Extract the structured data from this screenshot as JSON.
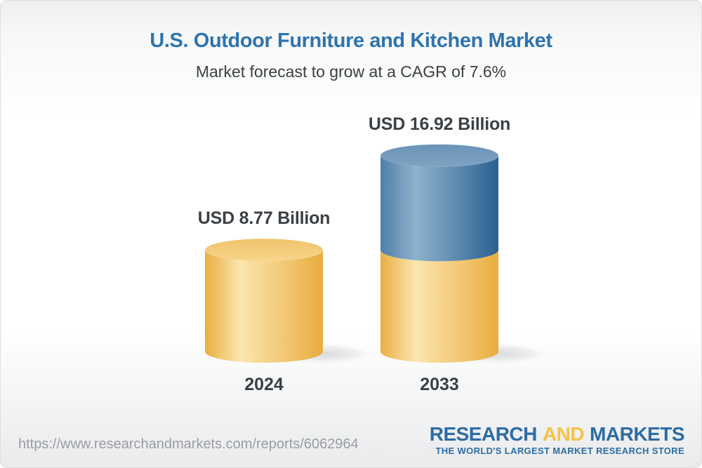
{
  "header": {
    "title": "U.S. Outdoor Furniture and Kitchen Market",
    "subtitle": "Market forecast to grow at a CAGR of 7.6%"
  },
  "chart_data": {
    "type": "bar",
    "variant": "3d cylinder columns; 2033 column is stacked: 2024 base value in gold, incremental growth in blue",
    "categories": [
      "2024",
      "2033"
    ],
    "values": [
      8.77,
      16.92
    ],
    "unit": "USD Billion",
    "value_labels": [
      "USD 8.77 Billion",
      "USD 16.92 Billion"
    ],
    "cagr_percent": 7.6,
    "axes": "none (value labels above columns, category labels below)",
    "gridlines": false,
    "legend": "none"
  },
  "theme": {
    "title_blue": "#2e74ae",
    "text_dark": "#3b4045",
    "url_gray": "#9a9da0",
    "brand_blue": "#2d6ca5",
    "brand_gold": "#f5c345",
    "base_gradient": [
      "#e9ae41",
      "#fce6af",
      "#e9ad3f"
    ],
    "base_top_gradient": [
      "#f0c36b",
      "#f6d58c"
    ],
    "growth_gradient": [
      "#4f7fa9",
      "#8fb2ce",
      "#2b6090"
    ],
    "growth_top_gradient": [
      "#6b93b7",
      "#7ea3c2"
    ]
  },
  "footer": {
    "source_url": "https://www.researchandmarkets.com/reports/6062964",
    "logo": {
      "word1": "RESEARCH",
      "word2": "AND",
      "word3": "MARKETS",
      "tagline": "THE WORLD'S LARGEST MARKET RESEARCH STORE"
    }
  }
}
